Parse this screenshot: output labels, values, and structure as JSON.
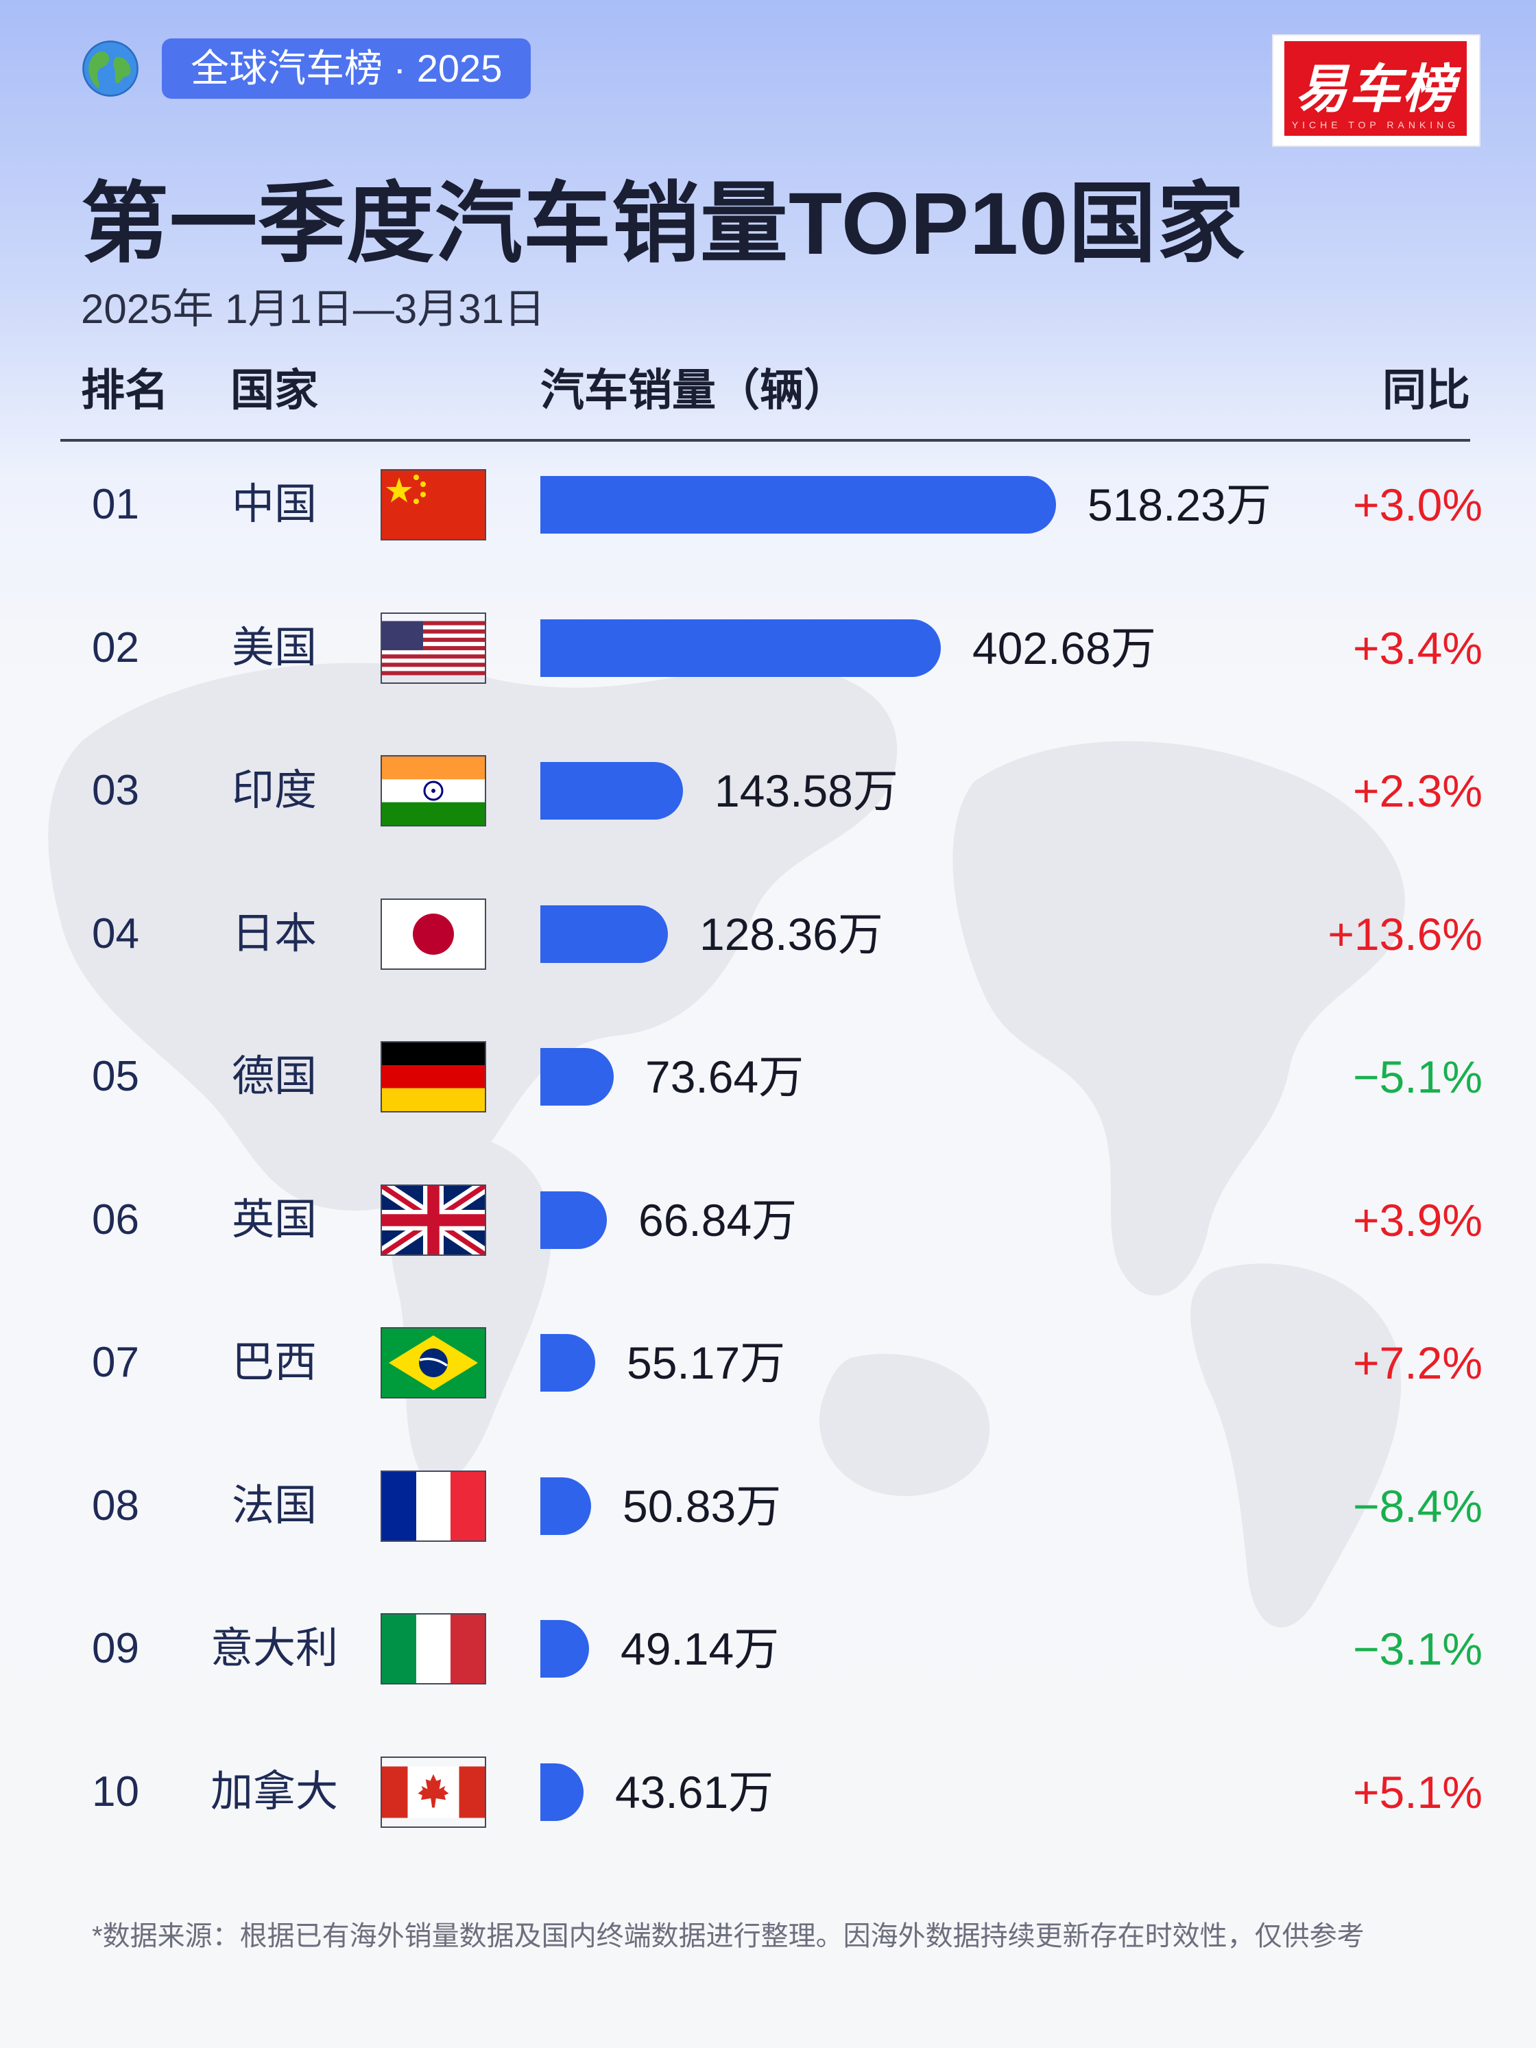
{
  "badge": {
    "label": "全球汽车榜 · 2025"
  },
  "logo": {
    "text": "易车榜",
    "subtitle": "YICHE TOP RANKING"
  },
  "title": "第一季度汽车销量TOP10国家",
  "date_range": "2025年 1月1日—3月31日",
  "headers": {
    "rank": "排名",
    "country": "国家",
    "sales": "汽车销量（辆）",
    "yoy": "同比"
  },
  "colors": {
    "bar": "#2f63ec",
    "positive": "#ea1d26",
    "negative": "#18b04e",
    "badge": "#4d73ef",
    "logo": "#e1141f"
  },
  "chart_data": {
    "type": "bar",
    "orientation": "horizontal",
    "unit": "万",
    "categories": [
      "中国",
      "美国",
      "印度",
      "日本",
      "德国",
      "英国",
      "巴西",
      "法国",
      "意大利",
      "加拿大"
    ],
    "values": [
      518.23,
      402.68,
      143.58,
      128.36,
      73.64,
      66.84,
      55.17,
      50.83,
      49.14,
      43.61
    ],
    "rows": [
      {
        "rank": "01",
        "country": "中国",
        "flag": "china-flag-icon",
        "value": 518.23,
        "value_label": "518.23万",
        "yoy": "+3.0%",
        "trend": "up"
      },
      {
        "rank": "02",
        "country": "美国",
        "flag": "usa-flag-icon",
        "value": 402.68,
        "value_label": "402.68万",
        "yoy": "+3.4%",
        "trend": "up"
      },
      {
        "rank": "03",
        "country": "印度",
        "flag": "india-flag-icon",
        "value": 143.58,
        "value_label": "143.58万",
        "yoy": "+2.3%",
        "trend": "up"
      },
      {
        "rank": "04",
        "country": "日本",
        "flag": "japan-flag-icon",
        "value": 128.36,
        "value_label": "128.36万",
        "yoy": "+13.6%",
        "trend": "up"
      },
      {
        "rank": "05",
        "country": "德国",
        "flag": "germany-flag-icon",
        "value": 73.64,
        "value_label": "73.64万",
        "yoy": "−5.1%",
        "trend": "down"
      },
      {
        "rank": "06",
        "country": "英国",
        "flag": "uk-flag-icon",
        "value": 66.84,
        "value_label": "66.84万",
        "yoy": "+3.9%",
        "trend": "up"
      },
      {
        "rank": "07",
        "country": "巴西",
        "flag": "brazil-flag-icon",
        "value": 55.17,
        "value_label": "55.17万",
        "yoy": "+7.2%",
        "trend": "up"
      },
      {
        "rank": "08",
        "country": "法国",
        "flag": "france-flag-icon",
        "value": 50.83,
        "value_label": "50.83万",
        "yoy": "−8.4%",
        "trend": "down"
      },
      {
        "rank": "09",
        "country": "意大利",
        "flag": "italy-flag-icon",
        "value": 49.14,
        "value_label": "49.14万",
        "yoy": "−3.1%",
        "trend": "down"
      },
      {
        "rank": "10",
        "country": "加拿大",
        "flag": "canada-flag-icon",
        "value": 43.61,
        "value_label": "43.61万",
        "yoy": "+5.1%",
        "trend": "up"
      }
    ]
  },
  "footnote": "*数据来源：根据已有海外销量数据及国内终端数据进行整理。因海外数据持续更新存在时效性，仅供参考"
}
